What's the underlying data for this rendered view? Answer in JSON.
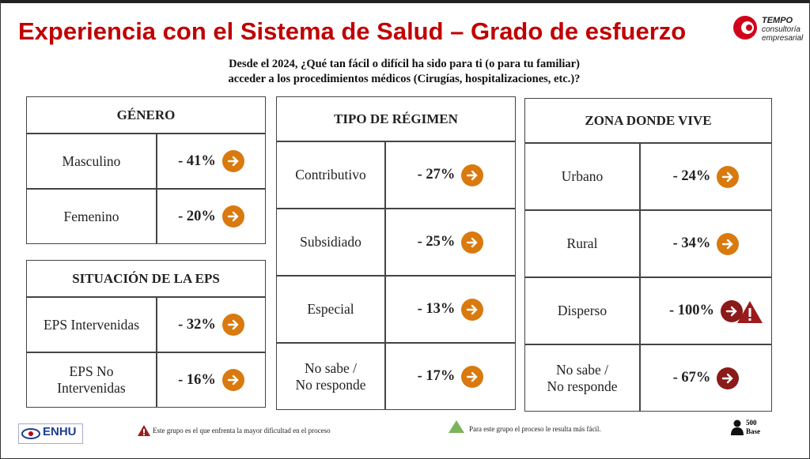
{
  "header": {
    "title": "Experiencia con el Sistema de Salud – Grado de esfuerzo",
    "question": "Desde el 2024, ¿Qué tan fácil o difícil ha sido para ti (o para tu familiar)\nacceder a los procedimientos médicos (Cirugías, hospitalizaciones, etc.)?"
  },
  "logo": {
    "name": "TEMPO",
    "line1": "consultoría",
    "line2": "empresarial"
  },
  "sections": [
    {
      "title": "GÉNERO",
      "rows": [
        {
          "label": "Masculino",
          "value": "- 41%",
          "arrow_color": "#d9790e"
        },
        {
          "label": "Femenino",
          "value": "- 20%",
          "arrow_color": "#d9790e"
        }
      ]
    },
    {
      "title": "SITUACIÓN DE LA EPS",
      "rows": [
        {
          "label": "EPS Intervenidas",
          "value": "- 32%",
          "arrow_color": "#d9790e"
        },
        {
          "label": "EPS No\nIntervenidas",
          "value": "- 16%",
          "arrow_color": "#d9790e"
        }
      ]
    },
    {
      "title": "TIPO DE RÉGIMEN",
      "rows": [
        {
          "label": "Contributivo",
          "value": "- 27%",
          "arrow_color": "#d9790e"
        },
        {
          "label": "Subsidiado",
          "value": "- 25%",
          "arrow_color": "#d9790e"
        },
        {
          "label": "Especial",
          "value": "- 13%",
          "arrow_color": "#d9790e"
        },
        {
          "label": "No sabe /\nNo responde",
          "value": "- 17%",
          "arrow_color": "#d9790e"
        }
      ]
    },
    {
      "title": "ZONA DONDE VIVE",
      "rows": [
        {
          "label": "Urbano",
          "value": "- 24%",
          "arrow_color": "#d9790e"
        },
        {
          "label": "Rural",
          "value": "- 34%",
          "arrow_color": "#d9790e"
        },
        {
          "label": "Disperso",
          "value": "- 100%",
          "arrow_color": "#8b1a1a"
        },
        {
          "label": "No sabe /\nNo responde",
          "value": "- 67%",
          "arrow_color": "#8b1a1a"
        }
      ]
    }
  ],
  "footer": {
    "brand": "ENHU",
    "note_hard": "Este grupo es el que enfrenta la mayor dificultad en el proceso",
    "note_easy": "Para este grupo el proceso le resulta más fácil.",
    "base_value": "500",
    "base_label": "Base"
  }
}
